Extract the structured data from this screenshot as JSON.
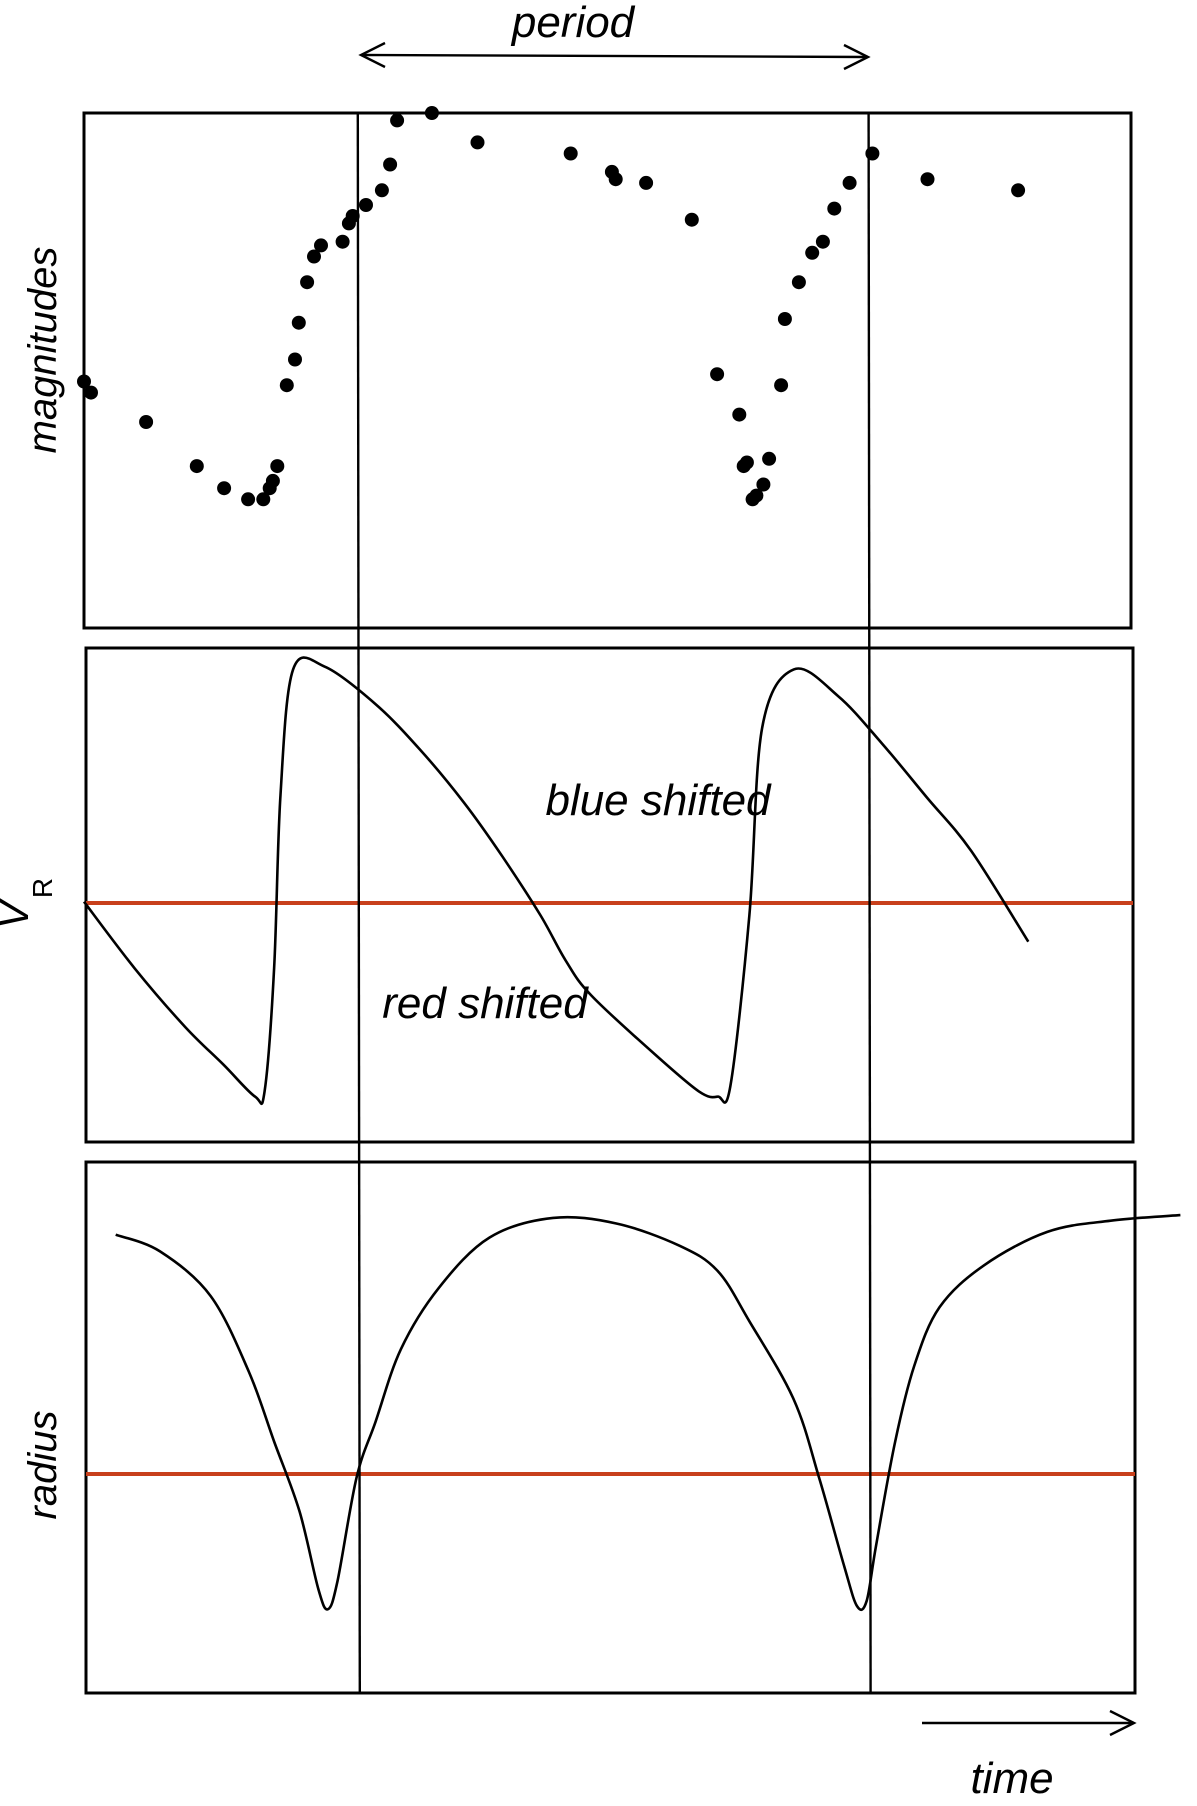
{
  "chart_data": [
    {
      "type": "scatter",
      "ylabel": "magnitudes",
      "title": "period",
      "x": [
        0.0,
        0.011,
        0.098,
        0.178,
        0.221,
        0.259,
        0.283,
        0.293,
        0.298,
        0.305,
        0.32,
        0.333,
        0.339,
        0.352,
        0.363,
        0.374,
        0.408,
        0.418,
        0.424,
        0.445,
        0.47,
        0.483,
        0.494,
        0.549,
        0.621,
        0.768,
        0.833,
        0.839,
        0.887,
        0.959,
        0.999,
        1.034,
        1.041,
        1.046,
        1.055,
        1.061,
        1.072,
        1.081,
        1.1,
        1.106,
        1.128,
        1.149,
        1.166,
        1.184,
        1.208,
        1.244,
        1.331,
        1.474
      ],
      "y": [
        0.17,
        0.14,
        0.06,
        -0.06,
        -0.12,
        -0.15,
        -0.15,
        -0.12,
        -0.1,
        -0.06,
        0.16,
        0.23,
        0.33,
        0.44,
        0.51,
        0.54,
        0.55,
        0.6,
        0.62,
        0.65,
        0.69,
        0.76,
        0.88,
        0.9,
        0.82,
        0.79,
        0.74,
        0.72,
        0.71,
        0.61,
        0.19,
        0.08,
        -0.06,
        -0.05,
        -0.15,
        -0.14,
        -0.11,
        -0.04,
        0.16,
        0.34,
        0.44,
        0.52,
        0.55,
        0.64,
        0.71,
        0.79,
        0.72,
        0.69
      ],
      "xlim": [
        0,
        1.66
      ],
      "ylim": [
        -0.5,
        0.9
      ]
    },
    {
      "type": "line",
      "ylabel": "V",
      "ylabel_subscript": "R",
      "annotations": [
        "blue shifted",
        "red shifted"
      ],
      "reference_line": 0,
      "x": [
        0.0,
        0.08,
        0.16,
        0.22,
        0.27,
        0.285,
        0.3,
        0.31,
        0.33,
        0.38,
        0.46,
        0.53,
        0.6,
        0.66,
        0.72,
        0.76,
        0.8,
        0.9,
        0.97,
        1.0,
        1.02,
        1.05,
        1.07,
        1.12,
        1.19,
        1.26,
        1.33,
        1.4,
        1.49
      ],
      "y": [
        0.05,
        -0.2,
        -0.42,
        -0.56,
        -0.68,
        -0.66,
        -0.2,
        0.45,
        0.92,
        0.93,
        0.79,
        0.62,
        0.42,
        0.22,
        0.0,
        -0.17,
        -0.3,
        -0.52,
        -0.66,
        -0.68,
        -0.64,
        0.0,
        0.7,
        0.92,
        0.82,
        0.64,
        0.44,
        0.24,
        -0.1
      ],
      "xlim": [
        0,
        1.66
      ],
      "ylim": [
        -0.85,
        1.0
      ]
    },
    {
      "type": "line",
      "ylabel": "radius",
      "xlabel": "time",
      "reference_line": 0,
      "x": [
        0.05,
        0.12,
        0.2,
        0.26,
        0.3,
        0.34,
        0.37,
        0.385,
        0.4,
        0.43,
        0.46,
        0.5,
        0.56,
        0.64,
        0.74,
        0.84,
        0.94,
        1.0,
        1.05,
        1.12,
        1.16,
        1.2,
        1.22,
        1.235,
        1.25,
        1.28,
        1.31,
        1.35,
        1.42,
        1.52,
        1.62,
        1.73
      ],
      "y": [
        0.69,
        0.63,
        0.47,
        0.2,
        -0.05,
        -0.3,
        -0.58,
        -0.65,
        -0.55,
        -0.18,
        0.02,
        0.28,
        0.5,
        0.68,
        0.75,
        0.73,
        0.65,
        0.56,
        0.38,
        0.1,
        -0.18,
        -0.5,
        -0.64,
        -0.62,
        -0.42,
        -0.05,
        0.22,
        0.43,
        0.58,
        0.7,
        0.74,
        0.76
      ],
      "xlim": [
        0,
        1.66
      ],
      "ylim": [
        -0.95,
        0.95
      ]
    }
  ],
  "annotations": {
    "period": "period",
    "time": "time",
    "blue_shifted": "blue shifted",
    "red_shifted": "red shifted"
  },
  "period_markers_x": [
    0.432,
    1.238
  ],
  "colors": {
    "reference_line": "#c8401c",
    "ink": "#000000"
  }
}
